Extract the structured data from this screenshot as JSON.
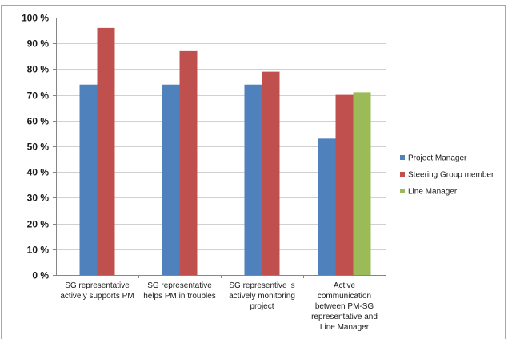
{
  "chart_data": {
    "type": "bar",
    "categories": [
      [
        "SG representative",
        "actively supports PM"
      ],
      [
        "SG representative",
        "helps PM in troubles"
      ],
      [
        "SG representive is",
        "actively monitoring",
        "project"
      ],
      [
        "Active",
        "communication",
        "between PM-SG",
        "representative and",
        "Line Manager"
      ]
    ],
    "series": [
      {
        "name": "Project Manager",
        "color": "#4f81bd",
        "values": [
          74,
          74,
          74,
          53
        ]
      },
      {
        "name": "Steering Group member",
        "color": "#c0504d",
        "values": [
          96,
          87,
          79,
          70
        ]
      },
      {
        "name": "Line Manager",
        "color": "#9bbb59",
        "values": [
          null,
          null,
          null,
          71
        ]
      }
    ],
    "yticks": [
      "0 %",
      "10 %",
      "20 %",
      "30 %",
      "40 %",
      "50 %",
      "60 %",
      "70 %",
      "80 %",
      "90 %",
      "100 %"
    ],
    "ylim": [
      0,
      100
    ],
    "grid": true,
    "legend_position": "right"
  }
}
